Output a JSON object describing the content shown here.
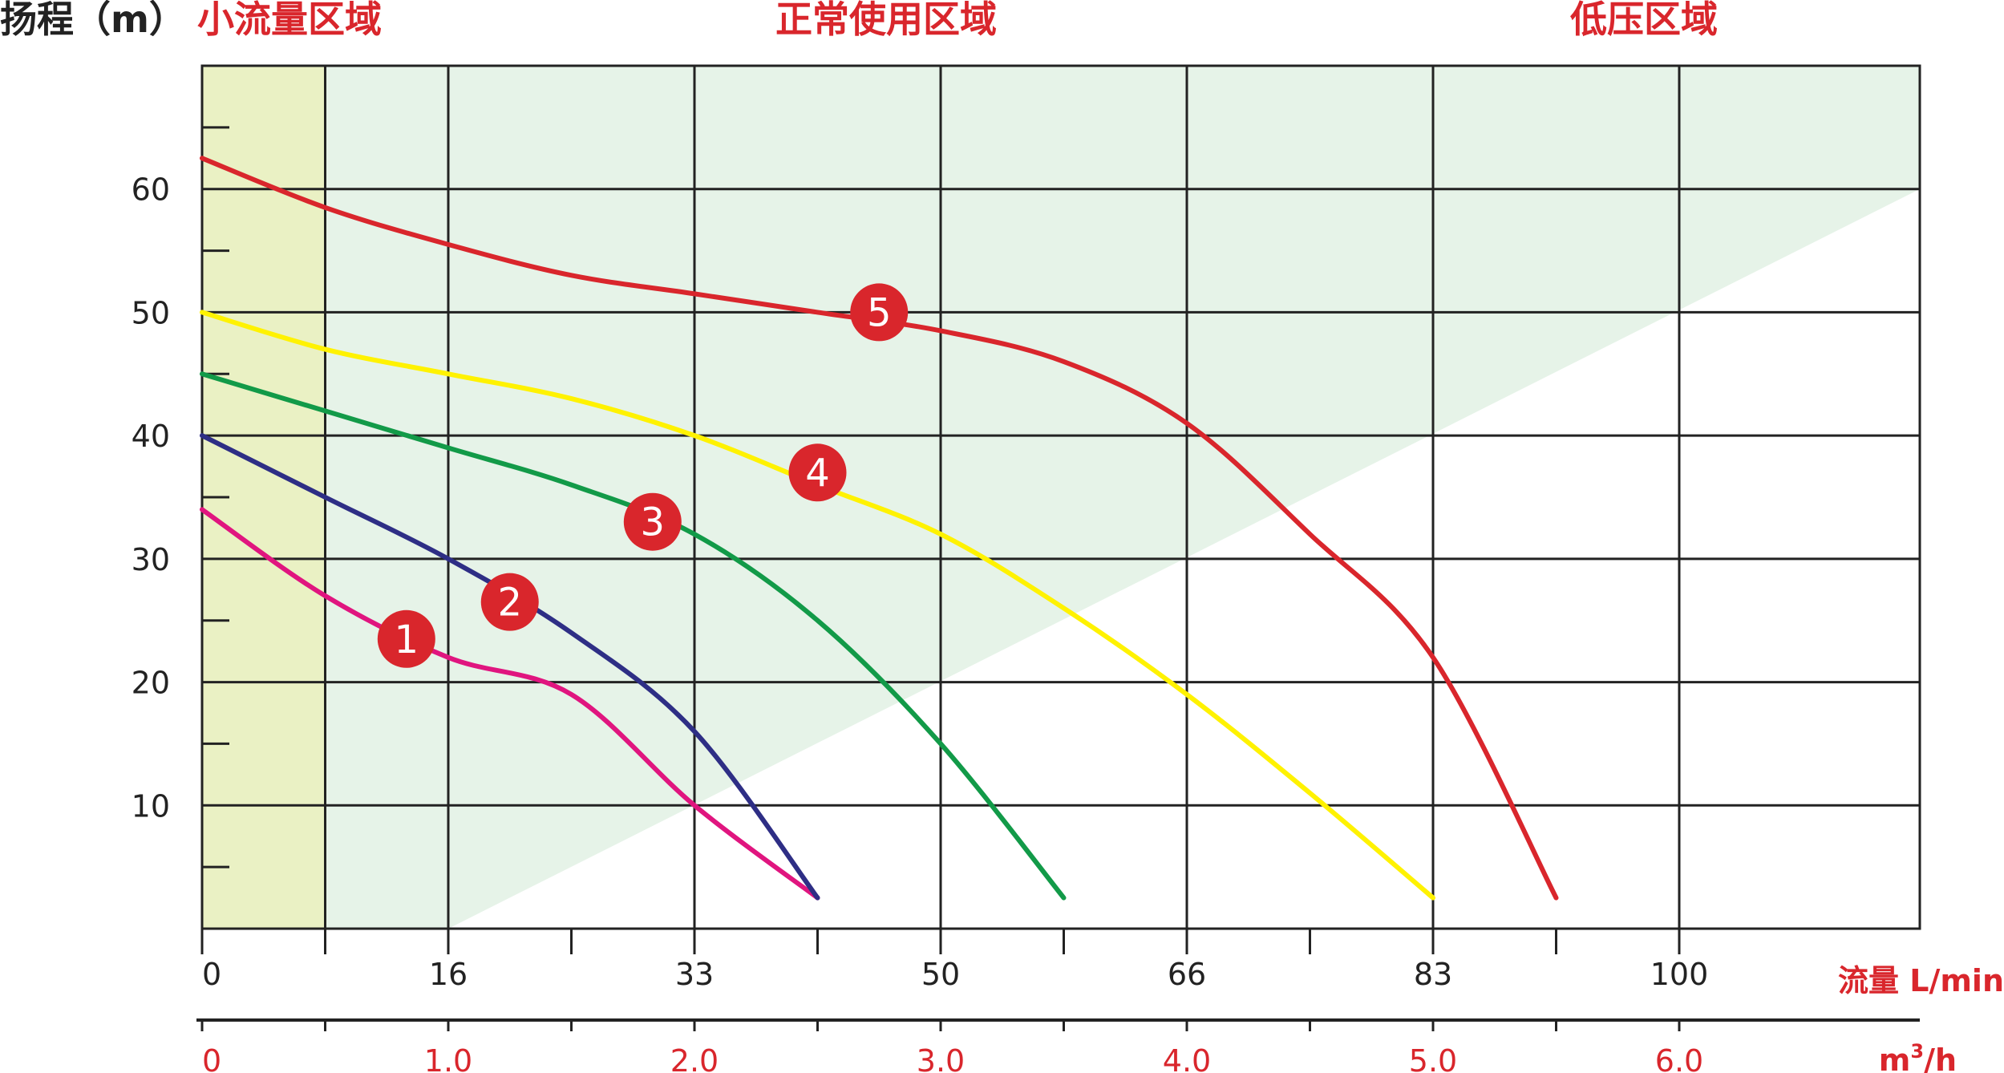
{
  "chart_data": {
    "type": "line",
    "ylabel": "扬程（m）",
    "x_unit_primary": "流量 L/min",
    "x_unit_secondary_base": "m",
    "x_unit_secondary_sup": "3",
    "x_unit_secondary_tail": "/h",
    "zones": [
      {
        "name": "小流量区域",
        "x_range": [
          0,
          0.5
        ],
        "color": "#eaf1c4"
      },
      {
        "name": "正常使用区域",
        "x_range": [
          0.5,
          6.0
        ],
        "color": "#e6f3e8"
      },
      {
        "name": "低压区域",
        "x_range": [
          6.5,
          7.0
        ],
        "color": "#ffffff"
      }
    ],
    "xlim": [
      0,
      7.0
    ],
    "ylim": [
      0,
      70
    ],
    "y_ticks": [
      10,
      20,
      30,
      40,
      50,
      60
    ],
    "y_tick_labels": [
      "10",
      "20",
      "30",
      "40",
      "50",
      "60"
    ],
    "x_ticks_lmin": [
      0,
      1.0,
      2.0,
      3.0,
      4.0,
      5.0,
      6.0
    ],
    "x_tick_labels_lmin": [
      "0",
      "16",
      "33",
      "50",
      "66",
      "83",
      "100"
    ],
    "x_tick_labels_m3h": [
      "0",
      "1.0",
      "2.0",
      "3.0",
      "4.0",
      "5.0",
      "6.0"
    ],
    "x_minor_ticks": [
      0.5,
      1.5,
      2.5,
      3.5,
      4.5,
      5.5
    ],
    "grid": true,
    "series": [
      {
        "name": "1",
        "color": "#e0157f",
        "x": [
          0,
          0.5,
          1.0,
          1.5,
          2.0,
          2.5
        ],
        "y": [
          34,
          27,
          22,
          19,
          10,
          2.5
        ],
        "marker_at": [
          0.83,
          23.5
        ]
      },
      {
        "name": "2",
        "color": "#2e2e85",
        "x": [
          0,
          0.5,
          1.0,
          1.5,
          2.0,
          2.5
        ],
        "y": [
          40,
          35,
          30,
          24,
          16,
          2.5
        ],
        "marker_at": [
          1.25,
          26.5
        ]
      },
      {
        "name": "3",
        "color": "#129a48",
        "x": [
          0,
          0.5,
          1.0,
          1.5,
          2.0,
          2.5,
          3.0,
          3.5
        ],
        "y": [
          45,
          42,
          39,
          36,
          32,
          25,
          15,
          2.5
        ],
        "marker_at": [
          1.83,
          33
        ]
      },
      {
        "name": "4",
        "color": "#fff200",
        "x": [
          0,
          0.5,
          1.0,
          1.5,
          2.0,
          2.5,
          3.0,
          3.5,
          4.0,
          4.5,
          5.0
        ],
        "y": [
          50,
          47,
          45,
          43,
          40,
          36,
          32,
          26,
          19,
          11,
          2.5
        ],
        "marker_at": [
          2.5,
          37
        ]
      },
      {
        "name": "5",
        "color": "#d9262c",
        "x": [
          0,
          0.5,
          1.0,
          1.5,
          2.0,
          2.5,
          3.0,
          3.5,
          4.0,
          4.5,
          5.0,
          5.5
        ],
        "y": [
          62.5,
          58.5,
          55.5,
          53,
          51.5,
          50,
          48.5,
          46,
          41,
          32,
          22,
          2.5
        ],
        "marker_at": [
          2.75,
          50
        ]
      }
    ]
  }
}
